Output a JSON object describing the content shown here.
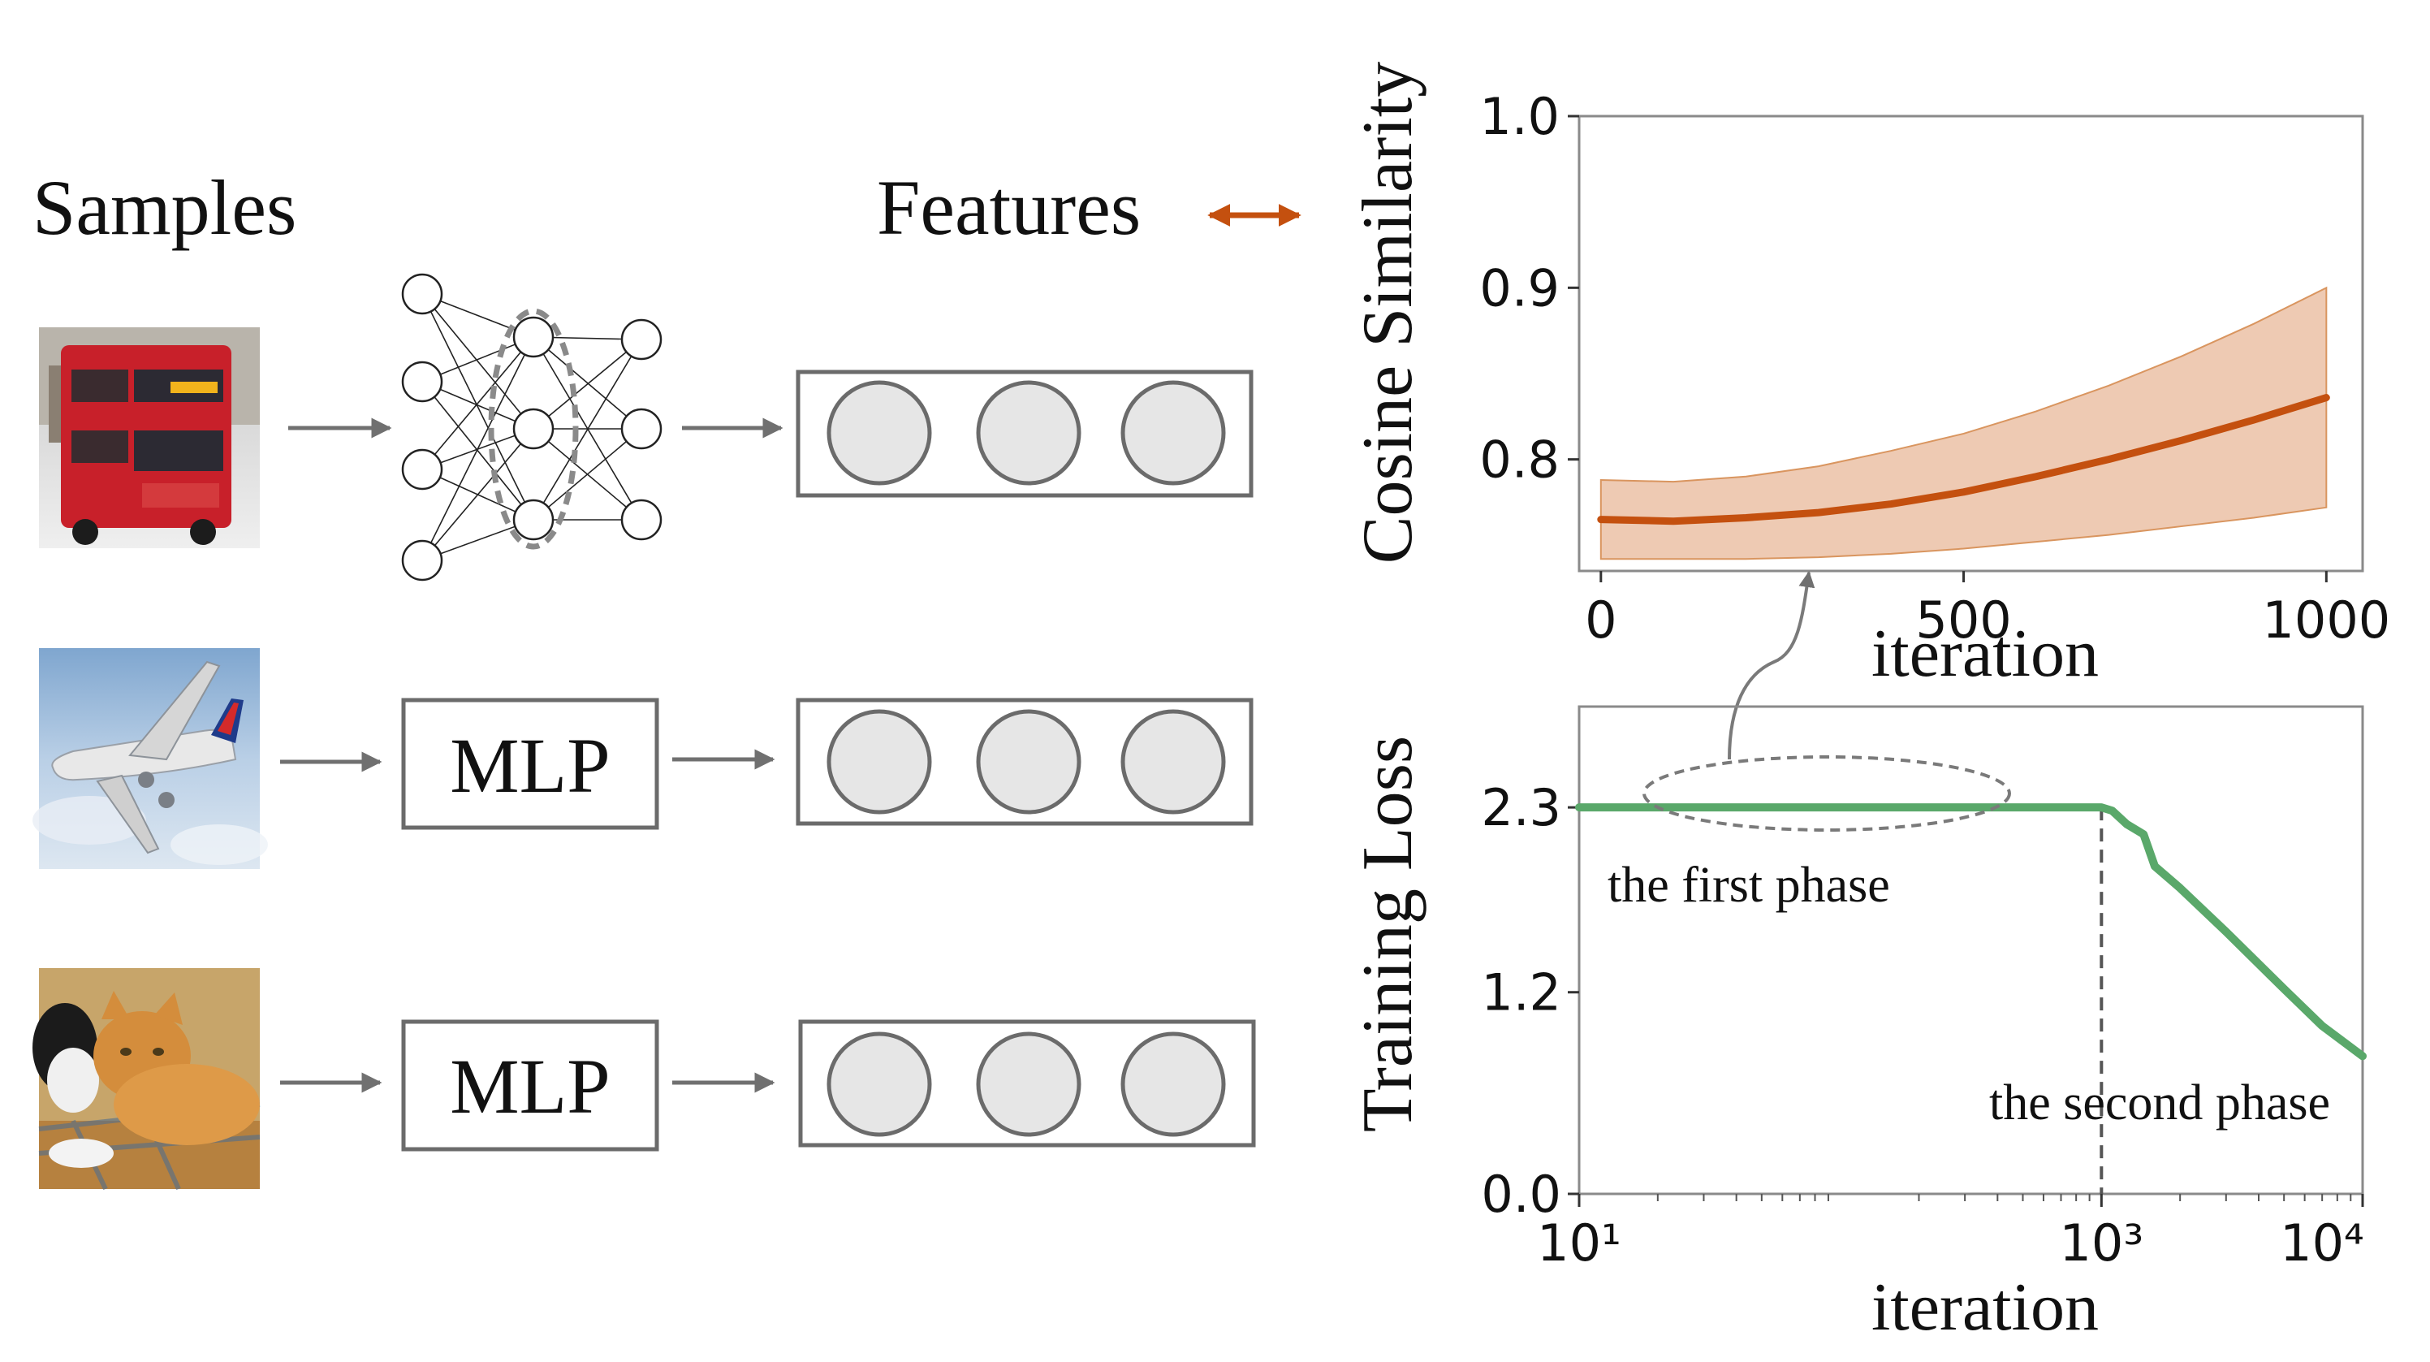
{
  "left": {
    "samples_label": "Samples",
    "features_label": "Features",
    "mlp_label_1": "MLP",
    "mlp_label_2": "MLP",
    "samples": [
      {
        "subject": "red double-decker bus"
      },
      {
        "subject": "airplane in sky"
      },
      {
        "subject": "cats on blanket"
      }
    ]
  },
  "colors": {
    "cosine": "#c4500f",
    "cosine_band": "#e8b89a",
    "loss": "#5aa86a",
    "arrow_gray": "#707070",
    "box_gray": "#6b6b6b",
    "node_fill": "#e6e6e6"
  },
  "chart_data": [
    {
      "type": "line",
      "ylabel": "Cosine Similarity",
      "xlabel": "iteration",
      "xlim": [
        -30,
        1050
      ],
      "ylim": [
        0.735,
        1.0
      ],
      "x_ticks": [
        "0",
        "500",
        "1000"
      ],
      "y_ticks": [
        "0.8",
        "0.9",
        "1.0"
      ],
      "series": [
        {
          "x": [
            0,
            100,
            200,
            300,
            400,
            500,
            600,
            700,
            800,
            900,
            1000
          ],
          "y": [
            0.765,
            0.764,
            0.766,
            0.769,
            0.774,
            0.781,
            0.79,
            0.8,
            0.811,
            0.823,
            0.836
          ],
          "y_lower": [
            0.742,
            0.742,
            0.742,
            0.743,
            0.745,
            0.748,
            0.752,
            0.756,
            0.761,
            0.766,
            0.772
          ],
          "y_upper": [
            0.788,
            0.787,
            0.79,
            0.796,
            0.805,
            0.815,
            0.828,
            0.843,
            0.86,
            0.879,
            0.9
          ]
        }
      ]
    },
    {
      "type": "line",
      "ylabel": "Training Loss",
      "xlabel": "iteration",
      "xscale": "log",
      "xlim": [
        10,
        10000
      ],
      "ylim": [
        0.0,
        2.9
      ],
      "x_ticks": [
        "10¹",
        "10³",
        "10⁴"
      ],
      "y_ticks": [
        "0.0",
        "1.2",
        "2.3"
      ],
      "annotations": [
        "the first phase",
        "the second phase"
      ],
      "phase_boundary_x": 1000,
      "series": [
        {
          "x": [
            10,
            30,
            100,
            300,
            1000,
            1100,
            1250,
            1450,
            1600,
            2000,
            3000,
            5000,
            7000,
            10000
          ],
          "y": [
            2.3,
            2.3,
            2.3,
            2.3,
            2.3,
            2.28,
            2.2,
            2.14,
            1.95,
            1.82,
            1.56,
            1.22,
            1.0,
            0.82
          ]
        }
      ]
    }
  ]
}
